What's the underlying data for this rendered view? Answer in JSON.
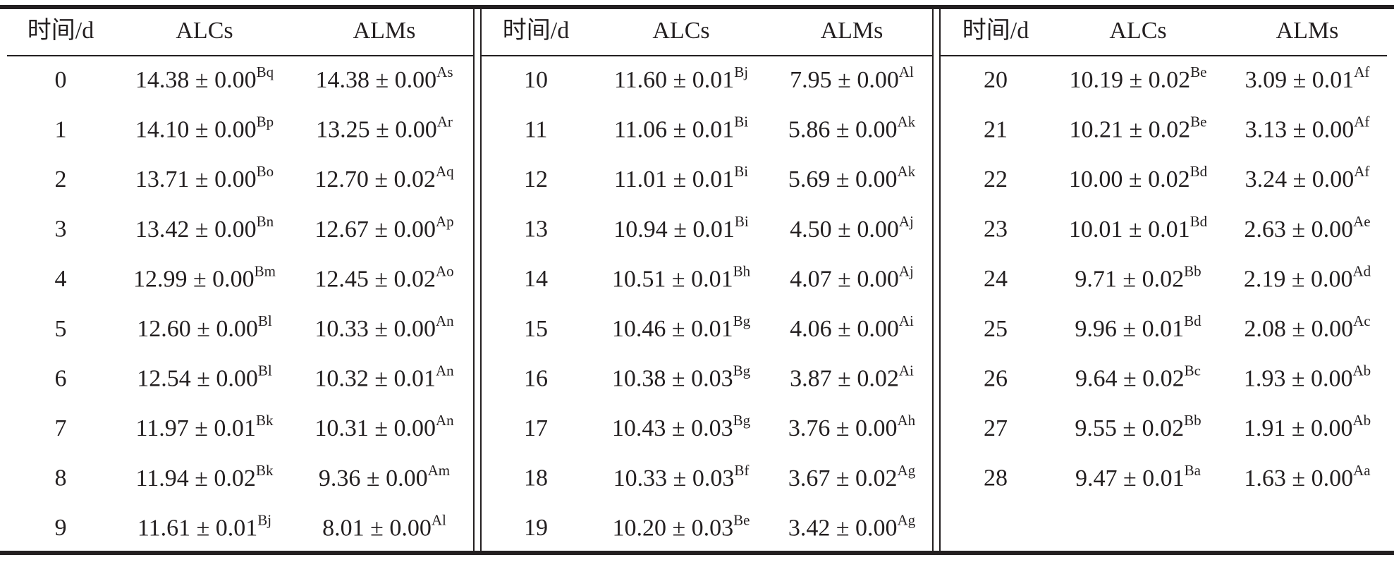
{
  "panels": [
    {
      "header": [
        "时间/d",
        "ALCs",
        "ALMs"
      ],
      "rows": [
        [
          0,
          {
            "v": "14.38 ± 0.00",
            "s": "Bq"
          },
          {
            "v": "14.38 ± 0.00",
            "s": "As"
          }
        ],
        [
          1,
          {
            "v": "14.10 ± 0.00",
            "s": "Bp"
          },
          {
            "v": "13.25 ± 0.00",
            "s": "Ar"
          }
        ],
        [
          2,
          {
            "v": "13.71 ± 0.00",
            "s": "Bo"
          },
          {
            "v": "12.70 ± 0.02",
            "s": "Aq"
          }
        ],
        [
          3,
          {
            "v": "13.42 ± 0.00",
            "s": "Bn"
          },
          {
            "v": "12.67 ± 0.00",
            "s": "Ap"
          }
        ],
        [
          4,
          {
            "v": "12.99 ± 0.00",
            "s": "Bm"
          },
          {
            "v": "12.45 ± 0.02",
            "s": "Ao"
          }
        ],
        [
          5,
          {
            "v": "12.60 ± 0.00",
            "s": "Bl"
          },
          {
            "v": "10.33 ± 0.00",
            "s": "An"
          }
        ],
        [
          6,
          {
            "v": "12.54 ± 0.00",
            "s": "Bl"
          },
          {
            "v": "10.32 ± 0.01",
            "s": "An"
          }
        ],
        [
          7,
          {
            "v": "11.97 ± 0.01",
            "s": "Bk"
          },
          {
            "v": "10.31 ± 0.00",
            "s": "An"
          }
        ],
        [
          8,
          {
            "v": "11.94 ± 0.02",
            "s": "Bk"
          },
          {
            "v": "9.36 ± 0.00",
            "s": "Am"
          }
        ],
        [
          9,
          {
            "v": "11.61 ± 0.01",
            "s": "Bj"
          },
          {
            "v": "8.01 ± 0.00",
            "s": "Al"
          }
        ]
      ]
    },
    {
      "header": [
        "时间/d",
        "ALCs",
        "ALMs"
      ],
      "rows": [
        [
          10,
          {
            "v": "11.60 ± 0.01",
            "s": "Bj"
          },
          {
            "v": "7.95 ± 0.00",
            "s": "Al"
          }
        ],
        [
          11,
          {
            "v": "11.06 ± 0.01",
            "s": "Bi"
          },
          {
            "v": "5.86 ± 0.00",
            "s": "Ak"
          }
        ],
        [
          12,
          {
            "v": "11.01 ± 0.01",
            "s": "Bi"
          },
          {
            "v": "5.69 ± 0.00",
            "s": "Ak"
          }
        ],
        [
          13,
          {
            "v": "10.94 ± 0.01",
            "s": "Bi"
          },
          {
            "v": "4.50 ± 0.00",
            "s": "Aj"
          }
        ],
        [
          14,
          {
            "v": "10.51 ± 0.01",
            "s": "Bh"
          },
          {
            "v": "4.07 ± 0.00",
            "s": "Aj"
          }
        ],
        [
          15,
          {
            "v": "10.46 ± 0.01",
            "s": "Bg"
          },
          {
            "v": "4.06 ± 0.00",
            "s": "Ai"
          }
        ],
        [
          16,
          {
            "v": "10.38 ± 0.03",
            "s": "Bg"
          },
          {
            "v": "3.87 ± 0.02",
            "s": "Ai"
          }
        ],
        [
          17,
          {
            "v": "10.43 ± 0.03",
            "s": "Bg"
          },
          {
            "v": "3.76 ± 0.00",
            "s": "Ah"
          }
        ],
        [
          18,
          {
            "v": "10.33 ± 0.03",
            "s": "Bf"
          },
          {
            "v": "3.67 ± 0.02",
            "s": "Ag"
          }
        ],
        [
          19,
          {
            "v": "10.20 ± 0.03",
            "s": "Be"
          },
          {
            "v": "3.42 ± 0.00",
            "s": "Ag"
          }
        ]
      ]
    },
    {
      "header": [
        "时间/d",
        "ALCs",
        "ALMs"
      ],
      "rows": [
        [
          20,
          {
            "v": "10.19 ± 0.02",
            "s": "Be"
          },
          {
            "v": "3.09 ± 0.01",
            "s": "Af"
          }
        ],
        [
          21,
          {
            "v": "10.21 ± 0.02",
            "s": "Be"
          },
          {
            "v": "3.13 ± 0.00",
            "s": "Af"
          }
        ],
        [
          22,
          {
            "v": "10.00 ± 0.02",
            "s": "Bd"
          },
          {
            "v": "3.24 ± 0.00",
            "s": "Af"
          }
        ],
        [
          23,
          {
            "v": "10.01 ± 0.01",
            "s": "Bd"
          },
          {
            "v": "2.63 ± 0.00",
            "s": "Ae"
          }
        ],
        [
          24,
          {
            "v": "9.71 ± 0.02",
            "s": "Bb"
          },
          {
            "v": "2.19 ± 0.00",
            "s": "Ad"
          }
        ],
        [
          25,
          {
            "v": "9.96 ± 0.01",
            "s": "Bd"
          },
          {
            "v": "2.08 ± 0.00",
            "s": "Ac"
          }
        ],
        [
          26,
          {
            "v": "9.64 ± 0.02",
            "s": "Bc"
          },
          {
            "v": "1.93 ± 0.00",
            "s": "Ab"
          }
        ],
        [
          27,
          {
            "v": "9.55 ± 0.02",
            "s": "Bb"
          },
          {
            "v": "1.91 ± 0.00",
            "s": "Ab"
          }
        ],
        [
          28,
          {
            "v": "9.47 ± 0.01",
            "s": "Ba"
          },
          {
            "v": "1.63 ± 0.00",
            "s": "Aa"
          }
        ]
      ]
    }
  ]
}
